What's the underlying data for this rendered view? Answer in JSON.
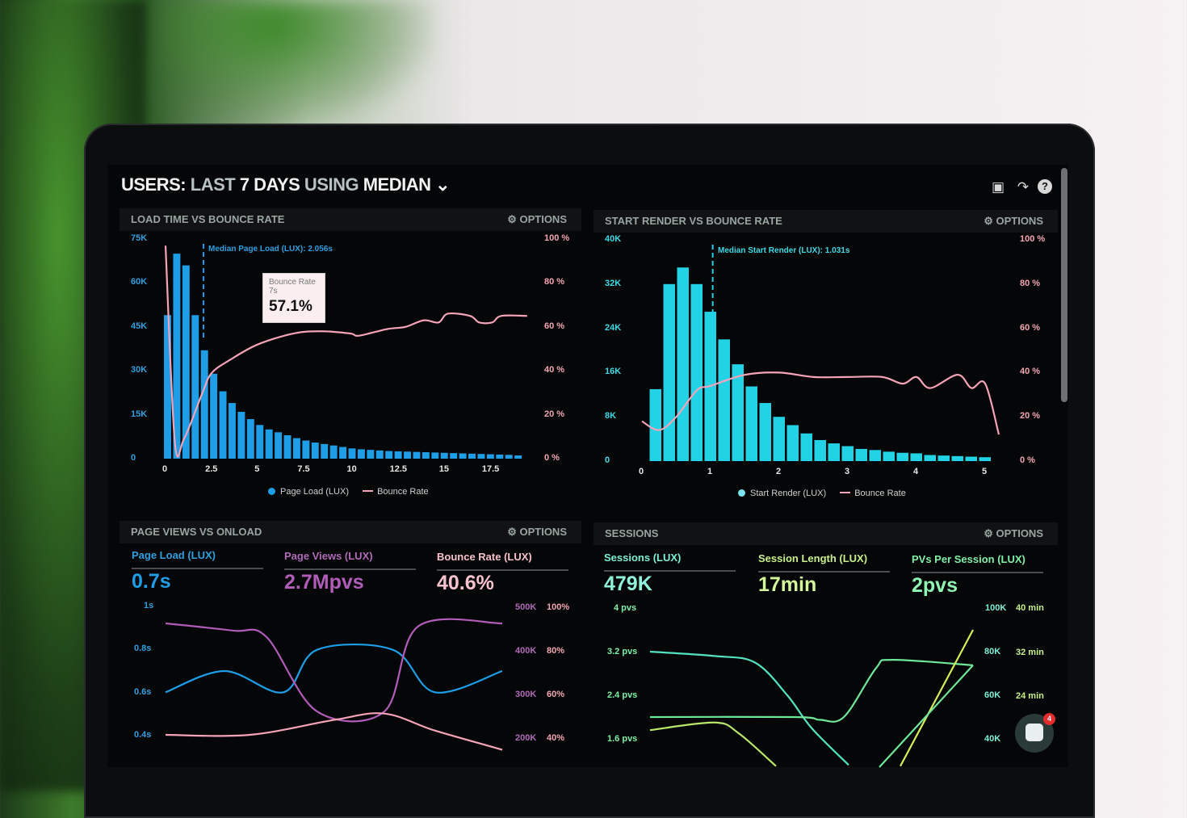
{
  "header": {
    "title_parts": [
      "USERS:",
      "LAST",
      "7 DAYS",
      "USING",
      "MEDIAN"
    ],
    "icons": [
      "monitor-icon",
      "share-icon",
      "help-icon"
    ]
  },
  "options_label": "OPTIONS",
  "colors": {
    "page_load": "#1e9ee6",
    "start_render": "#22d3e6",
    "bounce": "#f4a3b8",
    "page_views": "#b05cb8",
    "sessions": "#53e2c0",
    "session_length": "#b9e86a",
    "pvs_per_session": "#6fe79a"
  },
  "panels": {
    "load": {
      "title": "LOAD TIME VS BOUNCE RATE",
      "median": "Median Page Load (LUX): 2.056s",
      "legend": [
        "Page Load (LUX)",
        "Bounce Rate"
      ],
      "tooltip": {
        "label": "Bounce Rate",
        "x": "7s",
        "value": "57.1%"
      }
    },
    "render": {
      "title": "START RENDER VS BOUNCE RATE",
      "median": "Median Start Render (LUX): 1.031s",
      "legend": [
        "Start Render (LUX)",
        "Bounce Rate"
      ]
    },
    "pageviews": {
      "title": "PAGE VIEWS VS ONLOAD",
      "metrics": [
        {
          "label": "Page Load (LUX)",
          "value": "0.7s"
        },
        {
          "label": "Page Views (LUX)",
          "value": "2.7Mpvs"
        },
        {
          "label": "Bounce Rate (LUX)",
          "value": "40.6%"
        }
      ]
    },
    "sessions": {
      "title": "SESSIONS",
      "metrics": [
        {
          "label": "Sessions (LUX)",
          "value": "479K"
        },
        {
          "label": "Session Length (LUX)",
          "value": "17min"
        },
        {
          "label": "PVs Per Session (LUX)",
          "value": "2pvs"
        }
      ]
    }
  },
  "chat_badge": "4",
  "chart_data": [
    {
      "type": "bar",
      "title": "LOAD TIME VS BOUNCE RATE",
      "xlabel": "",
      "ylabel": "",
      "x_ticks": [
        "0",
        "2.5",
        "5",
        "7.5",
        "10",
        "12.5",
        "15",
        "17.5"
      ],
      "y_ticks": [
        "0",
        "15K",
        "30K",
        "45K",
        "60K",
        "75K"
      ],
      "y2_ticks": [
        "0 %",
        "20 %",
        "40 %",
        "60 %",
        "80 %",
        "100 %"
      ],
      "xlim": [
        0,
        20
      ],
      "ylim": [
        0,
        75000
      ],
      "y2lim": [
        0,
        100
      ],
      "median_x": 2.056,
      "bin_width": 0.5,
      "series": [
        {
          "name": "Page Load (LUX)",
          "type": "bar",
          "values": [
            49000,
            70000,
            66000,
            49000,
            37000,
            29000,
            23000,
            19000,
            16000,
            13500,
            11500,
            10000,
            9000,
            8000,
            7000,
            6200,
            5500,
            5000,
            4500,
            4000,
            3500,
            3200,
            3000,
            2800,
            2600,
            2500,
            2400,
            2300,
            2200,
            2100,
            2000,
            1900,
            1800,
            1700,
            1600,
            1500,
            1400,
            1300,
            1100
          ]
        },
        {
          "name": "Bounce Rate",
          "type": "line",
          "points": [
            [
              0,
              97
            ],
            [
              0.5,
              8
            ],
            [
              1,
              9
            ],
            [
              2,
              30
            ],
            [
              2.5,
              39
            ],
            [
              3.5,
              45
            ],
            [
              5,
              52
            ],
            [
              7,
              57.1
            ],
            [
              8.5,
              58
            ],
            [
              10,
              57
            ],
            [
              10.5,
              56
            ],
            [
              12,
              59
            ],
            [
              13,
              60
            ],
            [
              14,
              63
            ],
            [
              14.8,
              62
            ],
            [
              15.3,
              66
            ],
            [
              16.5,
              65
            ],
            [
              17,
              62
            ],
            [
              17.7,
              62
            ],
            [
              18.2,
              65
            ],
            [
              19.6,
              65
            ]
          ]
        }
      ]
    },
    {
      "type": "bar",
      "title": "START RENDER VS BOUNCE RATE",
      "x_ticks": [
        "0",
        "1",
        "2",
        "3",
        "4",
        "5"
      ],
      "y_ticks": [
        "0",
        "8K",
        "16K",
        "24K",
        "32K",
        "40K"
      ],
      "y2_ticks": [
        "0 %",
        "20 %",
        "40 %",
        "60 %",
        "80 %",
        "100 %"
      ],
      "xlim": [
        0,
        5.3
      ],
      "ylim": [
        0,
        40000
      ],
      "y2lim": [
        0,
        100
      ],
      "median_x": 1.031,
      "bin_width": 0.2,
      "series": [
        {
          "name": "Start Render (LUX)",
          "type": "bar",
          "values": [
            13000,
            32000,
            35000,
            32000,
            27000,
            22000,
            17500,
            13500,
            10500,
            8000,
            6500,
            5000,
            3800,
            3200,
            2700,
            2200,
            2000,
            1700,
            1500,
            1400,
            1100,
            1000,
            900,
            800,
            700
          ]
        },
        {
          "name": "Bounce Rate",
          "type": "line",
          "points": [
            [
              0,
              18
            ],
            [
              0.25,
              14
            ],
            [
              0.5,
              20
            ],
            [
              0.8,
              32
            ],
            [
              1,
              34
            ],
            [
              1.5,
              39
            ],
            [
              2,
              40
            ],
            [
              2.5,
              38
            ],
            [
              3,
              38
            ],
            [
              3.5,
              38
            ],
            [
              3.8,
              35
            ],
            [
              4,
              38
            ],
            [
              4.2,
              33
            ],
            [
              4.6,
              39
            ],
            [
              4.8,
              33
            ],
            [
              5,
              35
            ],
            [
              5.2,
              12
            ]
          ]
        }
      ]
    },
    {
      "type": "line",
      "title": "PAGE VIEWS VS ONLOAD",
      "y_ticks": [
        "0.4s",
        "0.6s",
        "0.8s",
        "1s"
      ],
      "y2_ticks": [
        "200K",
        "300K",
        "400K",
        "500K"
      ],
      "y3_ticks": [
        "40%",
        "60%",
        "80%",
        "100%"
      ],
      "ylim": [
        0.4,
        1
      ],
      "y2lim": [
        200,
        500
      ],
      "y3lim": [
        40,
        100
      ],
      "series": [
        {
          "name": "Page Load (LUX)",
          "axis": "y",
          "points": [
            [
              0,
              0.6
            ],
            [
              3.5,
              0.7
            ],
            [
              7,
              0.6
            ],
            [
              9,
              0.8
            ],
            [
              13.5,
              0.8
            ],
            [
              16,
              0.6
            ],
            [
              20,
              0.7
            ]
          ]
        },
        {
          "name": "Page Views (LUX)",
          "axis": "y2",
          "points": [
            [
              0,
              462
            ],
            [
              4,
              445
            ],
            [
              6,
              430
            ],
            [
              9,
              255
            ],
            [
              13,
              255
            ],
            [
              15,
              455
            ],
            [
              20,
              462
            ]
          ]
        },
        {
          "name": "Bounce Rate (LUX)",
          "axis": "y3",
          "points": [
            [
              0,
              40
            ],
            [
              5,
              40
            ],
            [
              10,
              47
            ],
            [
              13,
              50
            ],
            [
              16,
              42
            ],
            [
              20,
              33
            ]
          ]
        }
      ]
    },
    {
      "type": "line",
      "title": "SESSIONS",
      "y_ticks": [
        "1.6 pvs",
        "2.4 pvs",
        "3.2 pvs",
        "4 pvs"
      ],
      "y2_ticks": [
        "40K",
        "60K",
        "80K",
        "100K"
      ],
      "y3_ticks": [
        "24 min",
        "32 min",
        "40 min"
      ],
      "ylim": [
        1.6,
        4
      ],
      "y2lim": [
        40,
        100
      ],
      "y3lim": [
        16,
        40
      ],
      "series": [
        {
          "name": "Sessions (LUX)",
          "axis": "y2",
          "points": [
            [
              0,
              80
            ],
            [
              4,
              78
            ],
            [
              6.5,
              75
            ],
            [
              8.5,
              60
            ],
            [
              10,
              45
            ],
            [
              12.3,
              28
            ]
          ]
        },
        {
          "name": "PVs Per Session (LUX)",
          "axis": "y",
          "points": [
            [
              0,
              2.0
            ],
            [
              9,
              2.0
            ],
            [
              10.5,
              1.95
            ],
            [
              12,
              2.0
            ],
            [
              14,
              2.9
            ],
            [
              15,
              3.05
            ],
            [
              20,
              2.95
            ]
          ]
        },
        {
          "name": "Session Length (LUX)",
          "axis": "y3",
          "points": [
            [
              0,
              17.6
            ],
            [
              4,
              19
            ],
            [
              5.5,
              17
            ],
            [
              7.8,
              11
            ]
          ]
        },
        {
          "name": "Session Length (LUX)",
          "axis": "y3",
          "points": [
            [
              15.5,
              11
            ],
            [
              20,
              36
            ]
          ]
        },
        {
          "name": "PVs Per Session (LUX)",
          "axis": "y",
          "points": [
            [
              14.2,
              1.08
            ],
            [
              20,
              2.95
            ]
          ]
        }
      ]
    }
  ]
}
